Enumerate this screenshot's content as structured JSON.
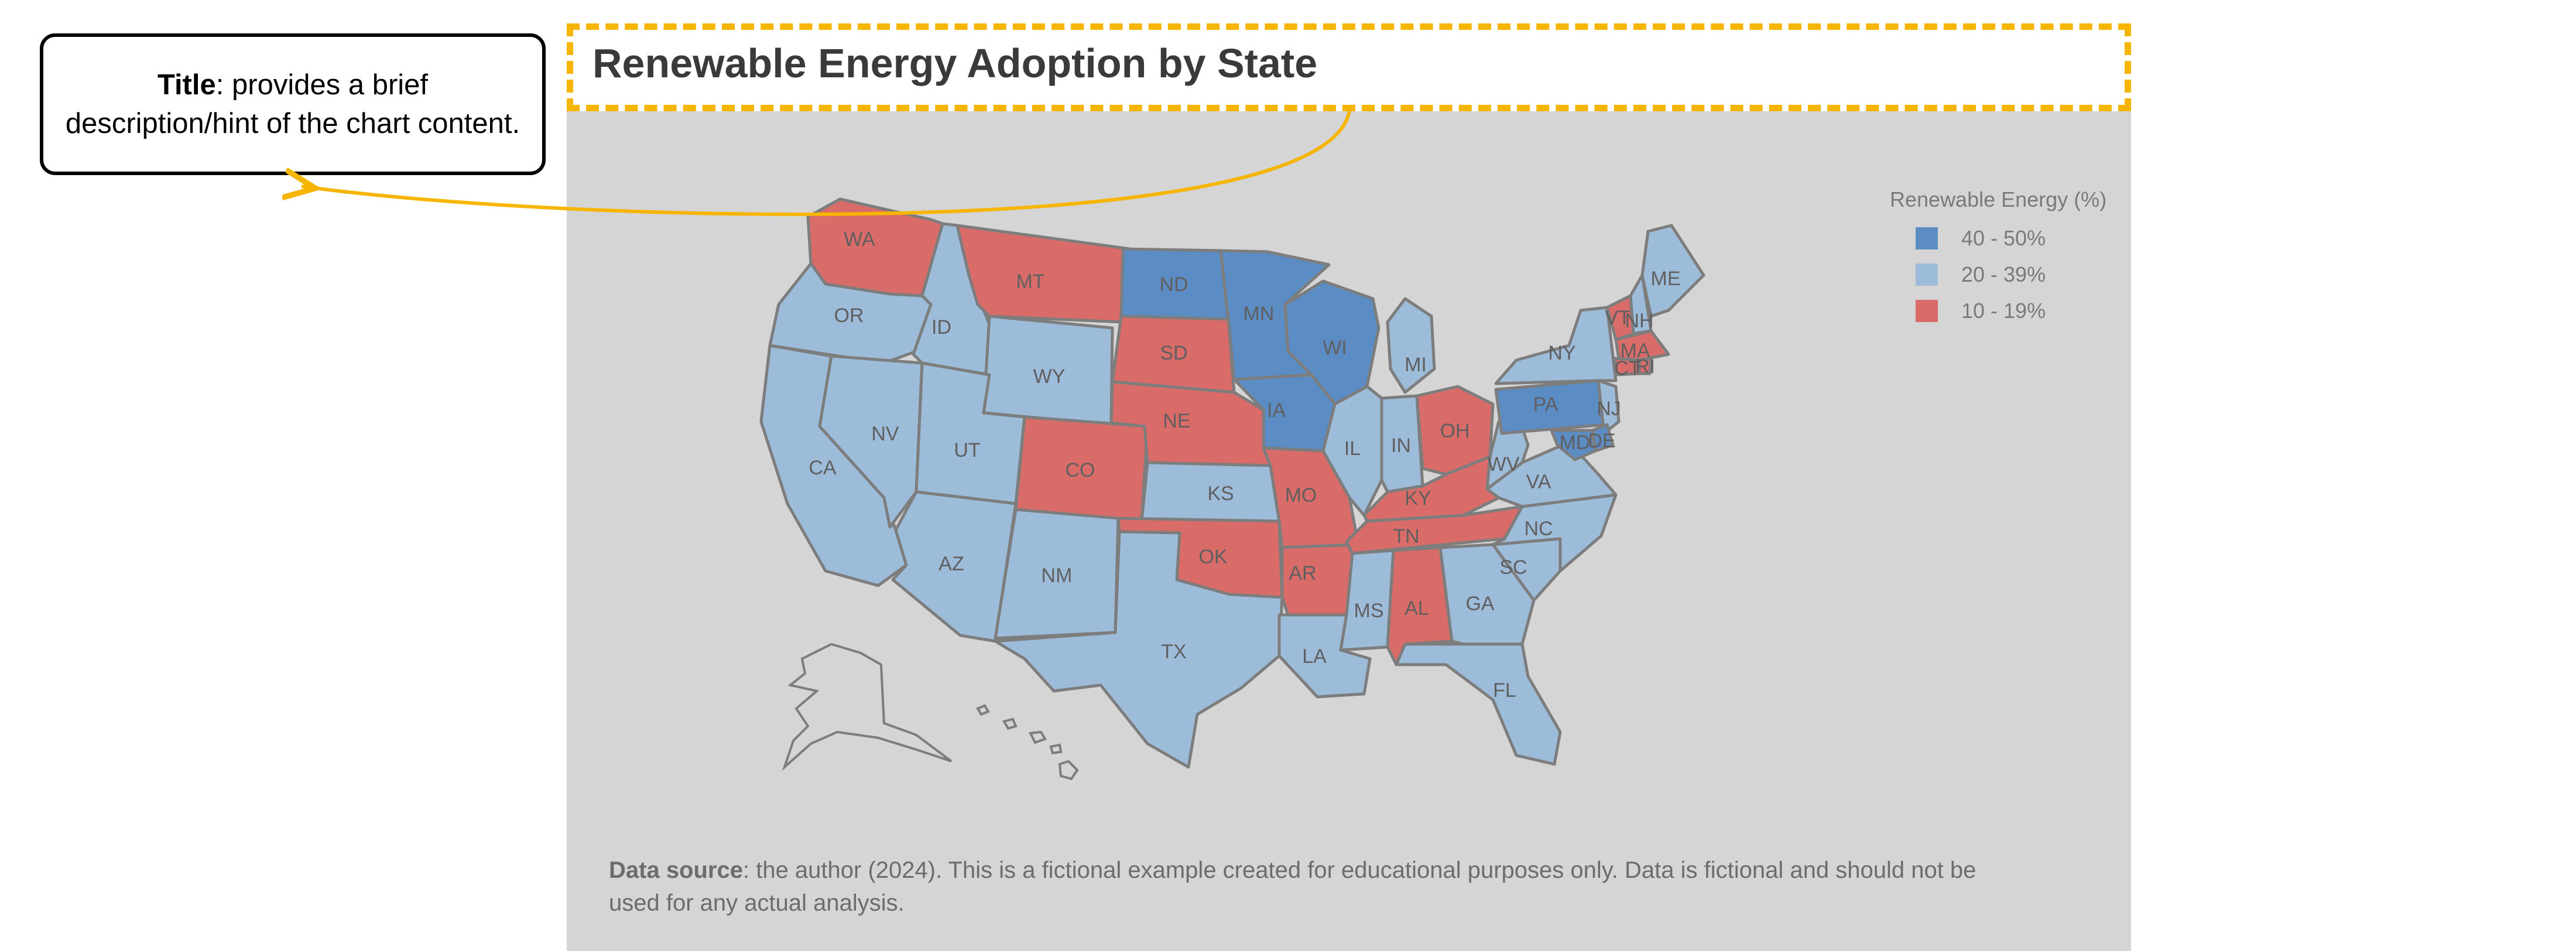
{
  "annotation": {
    "term": "Title",
    "text": ": provides a brief description/hint of the chart content."
  },
  "chart": {
    "title": "Renewable Energy Adoption by State",
    "legend": {
      "title": "Renewable Energy (%)",
      "items": [
        {
          "label": "40 - 50%",
          "color": "#5b8cc4"
        },
        {
          "label": "20 - 39%",
          "color": "#9dbcd9"
        },
        {
          "label": "10 - 19%",
          "color": "#d96c69"
        }
      ]
    },
    "footnote": {
      "term": "Data source",
      "text": ": the author (2024). This is a fictional example created for educational purposes only. Data is fictional and should not be used for any actual analysis."
    }
  },
  "colors": {
    "panel_bg": "#d5d5d5",
    "highlight": "#f5b500",
    "state_border": "#7d7d7d"
  },
  "chart_data": {
    "type": "choropleth",
    "value_label": "Renewable Energy (%)",
    "categories": [
      "40 - 50%",
      "20 - 39%",
      "10 - 19%"
    ],
    "states": [
      {
        "abbr": "WA",
        "bin": "10 - 19%"
      },
      {
        "abbr": "OR",
        "bin": "20 - 39%"
      },
      {
        "abbr": "CA",
        "bin": "20 - 39%"
      },
      {
        "abbr": "ID",
        "bin": "20 - 39%"
      },
      {
        "abbr": "NV",
        "bin": "20 - 39%"
      },
      {
        "abbr": "MT",
        "bin": "10 - 19%"
      },
      {
        "abbr": "WY",
        "bin": "20 - 39%"
      },
      {
        "abbr": "UT",
        "bin": "20 - 39%"
      },
      {
        "abbr": "AZ",
        "bin": "20 - 39%"
      },
      {
        "abbr": "CO",
        "bin": "10 - 19%"
      },
      {
        "abbr": "NM",
        "bin": "20 - 39%"
      },
      {
        "abbr": "ND",
        "bin": "40 - 50%"
      },
      {
        "abbr": "SD",
        "bin": "10 - 19%"
      },
      {
        "abbr": "NE",
        "bin": "10 - 19%"
      },
      {
        "abbr": "KS",
        "bin": "20 - 39%"
      },
      {
        "abbr": "OK",
        "bin": "10 - 19%"
      },
      {
        "abbr": "TX",
        "bin": "20 - 39%"
      },
      {
        "abbr": "MN",
        "bin": "40 - 50%"
      },
      {
        "abbr": "IA",
        "bin": "40 - 50%"
      },
      {
        "abbr": "MO",
        "bin": "10 - 19%"
      },
      {
        "abbr": "AR",
        "bin": "10 - 19%"
      },
      {
        "abbr": "LA",
        "bin": "20 - 39%"
      },
      {
        "abbr": "WI",
        "bin": "40 - 50%"
      },
      {
        "abbr": "IL",
        "bin": "20 - 39%"
      },
      {
        "abbr": "MI",
        "bin": "20 - 39%"
      },
      {
        "abbr": "IN",
        "bin": "20 - 39%"
      },
      {
        "abbr": "OH",
        "bin": "10 - 19%"
      },
      {
        "abbr": "KY",
        "bin": "10 - 19%"
      },
      {
        "abbr": "TN",
        "bin": "10 - 19%"
      },
      {
        "abbr": "MS",
        "bin": "20 - 39%"
      },
      {
        "abbr": "AL",
        "bin": "10 - 19%"
      },
      {
        "abbr": "GA",
        "bin": "20 - 39%"
      },
      {
        "abbr": "FL",
        "bin": "20 - 39%"
      },
      {
        "abbr": "SC",
        "bin": "20 - 39%"
      },
      {
        "abbr": "NC",
        "bin": "20 - 39%"
      },
      {
        "abbr": "VA",
        "bin": "20 - 39%"
      },
      {
        "abbr": "WV",
        "bin": "20 - 39%"
      },
      {
        "abbr": "PA",
        "bin": "40 - 50%"
      },
      {
        "abbr": "NY",
        "bin": "20 - 39%"
      },
      {
        "abbr": "VT",
        "bin": "10 - 19%"
      },
      {
        "abbr": "NH",
        "bin": "20 - 39%"
      },
      {
        "abbr": "ME",
        "bin": "20 - 39%"
      },
      {
        "abbr": "MA",
        "bin": "10 - 19%"
      },
      {
        "abbr": "RI",
        "bin": "10 - 19%"
      },
      {
        "abbr": "CT",
        "bin": "10 - 19%"
      },
      {
        "abbr": "NJ",
        "bin": "20 - 39%"
      },
      {
        "abbr": "DE",
        "bin": "40 - 50%"
      },
      {
        "abbr": "MD",
        "bin": "40 - 50%"
      },
      {
        "abbr": "AK",
        "bin": "none"
      },
      {
        "abbr": "HI",
        "bin": "none"
      }
    ]
  }
}
